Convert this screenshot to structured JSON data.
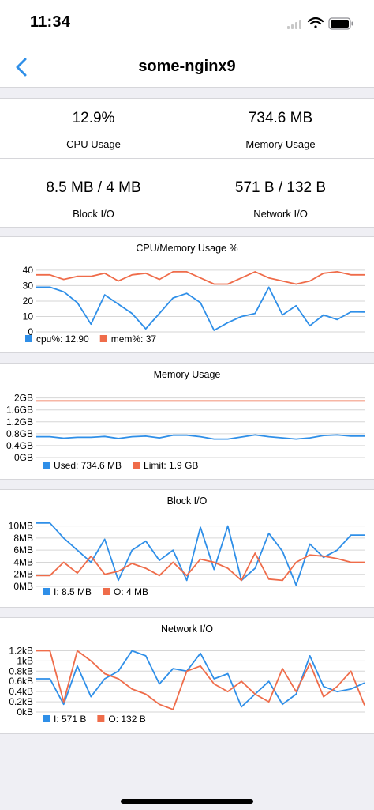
{
  "status_bar": {
    "time": "11:34"
  },
  "nav": {
    "title": "some-nginx9"
  },
  "stats": [
    {
      "value": "12.9%",
      "label": "CPU Usage"
    },
    {
      "value": "734.6 MB",
      "label": "Memory Usage"
    },
    {
      "value": "8.5 MB / 4 MB",
      "label": "Block I/O"
    },
    {
      "value": "571 B / 132 B",
      "label": "Network I/O"
    }
  ],
  "colors": {
    "blue": "#2f8fe8",
    "orange": "#ef6c4a",
    "grid": "#d6d6d6"
  },
  "chart_data": [
    {
      "type": "line",
      "title": "CPU/Memory Usage %",
      "ylim": [
        0,
        42
      ],
      "y_ticks": [
        "0",
        "10",
        "20",
        "30",
        "40"
      ],
      "x": [
        1,
        2,
        3,
        4,
        5,
        6,
        7,
        8,
        9,
        10,
        11,
        12,
        13,
        14,
        15,
        16,
        17,
        18,
        19,
        20,
        21,
        22,
        23,
        24,
        25
      ],
      "series": [
        {
          "name": "cpu%: 12.90",
          "color": "#2f8fe8",
          "values": [
            29,
            29,
            26,
            19,
            5,
            24,
            18,
            12,
            2,
            12,
            22,
            25,
            19,
            1,
            6,
            10,
            12,
            29,
            11,
            17,
            4,
            11,
            8,
            13,
            12.9
          ]
        },
        {
          "name": "mem%: 37",
          "color": "#ef6c4a",
          "values": [
            37,
            37,
            34,
            36,
            36,
            38,
            33,
            37,
            38,
            34,
            39,
            39,
            35,
            31,
            31,
            35,
            39,
            35,
            33,
            31,
            33,
            38,
            39,
            37,
            37
          ]
        }
      ]
    },
    {
      "type": "line",
      "title": "Memory Usage",
      "ylim": [
        0,
        2.15
      ],
      "y_ticks": [
        "0GB",
        "0.4GB",
        "0.8GB",
        "1.2GB",
        "1.6GB",
        "2GB"
      ],
      "x": [
        1,
        2,
        3,
        4,
        5,
        6,
        7,
        8,
        9,
        10,
        11,
        12,
        13,
        14,
        15,
        16,
        17,
        18,
        19,
        20,
        21,
        22,
        23,
        24,
        25
      ],
      "series": [
        {
          "name": "Used: 734.6 MB",
          "color": "#2f8fe8",
          "values": [
            0.7,
            0.7,
            0.65,
            0.68,
            0.68,
            0.71,
            0.64,
            0.7,
            0.72,
            0.66,
            0.75,
            0.75,
            0.7,
            0.62,
            0.62,
            0.69,
            0.76,
            0.7,
            0.66,
            0.62,
            0.66,
            0.74,
            0.76,
            0.72,
            0.72
          ]
        },
        {
          "name": "Limit: 1.9 GB",
          "color": "#ef6c4a",
          "values": [
            1.9,
            1.9,
            1.9,
            1.9,
            1.9,
            1.9,
            1.9,
            1.9,
            1.9,
            1.9,
            1.9,
            1.9,
            1.9,
            1.9,
            1.9,
            1.9,
            1.9,
            1.9,
            1.9,
            1.9,
            1.9,
            1.9,
            1.9,
            1.9,
            1.9
          ]
        }
      ]
    },
    {
      "type": "line",
      "title": "Block I/O",
      "ylim": [
        0,
        11
      ],
      "y_ticks": [
        "0MB",
        "2MB",
        "4MB",
        "6MB",
        "8MB",
        "10MB"
      ],
      "x": [
        1,
        2,
        3,
        4,
        5,
        6,
        7,
        8,
        9,
        10,
        11,
        12,
        13,
        14,
        15,
        16,
        17,
        18,
        19,
        20,
        21,
        22,
        23,
        24,
        25
      ],
      "series": [
        {
          "name": "I: 8.5 MB",
          "color": "#2f8fe8",
          "values": [
            10.5,
            10.5,
            8,
            6,
            4,
            7.8,
            1,
            6,
            7.5,
            4.3,
            6,
            1,
            9.8,
            2.8,
            10,
            1,
            3,
            8.8,
            5.8,
            0.2,
            7,
            4.8,
            6,
            8.5,
            8.5
          ]
        },
        {
          "name": "O: 4 MB",
          "color": "#ef6c4a",
          "values": [
            1.8,
            1.8,
            4,
            2.2,
            5,
            2,
            2.5,
            3.8,
            3,
            1.8,
            4,
            1.8,
            4.5,
            4,
            3,
            1,
            5.5,
            1.2,
            1,
            4,
            5.2,
            5,
            4.6,
            4,
            4
          ]
        }
      ]
    },
    {
      "type": "line",
      "title": "Network I/O",
      "ylim": [
        0,
        1.3
      ],
      "y_ticks": [
        "0kB",
        "0.2kB",
        "0.4kB",
        "0.6kB",
        "0.8kB",
        "1kB",
        "1.2kB"
      ],
      "x": [
        1,
        2,
        3,
        4,
        5,
        6,
        7,
        8,
        9,
        10,
        11,
        12,
        13,
        14,
        15,
        16,
        17,
        18,
        19,
        20,
        21,
        22,
        23,
        24,
        25
      ],
      "series": [
        {
          "name": "I: 571 B",
          "color": "#2f8fe8",
          "values": [
            0.65,
            0.65,
            0.15,
            0.9,
            0.3,
            0.65,
            0.8,
            1.2,
            1.1,
            0.55,
            0.85,
            0.8,
            1.15,
            0.65,
            0.75,
            0.1,
            0.35,
            0.6,
            0.15,
            0.35,
            1.1,
            0.5,
            0.4,
            0.45,
            0.57
          ]
        },
        {
          "name": "O: 132 B",
          "color": "#ef6c4a",
          "values": [
            1.2,
            1.2,
            0.2,
            1.2,
            1,
            0.75,
            0.65,
            0.45,
            0.35,
            0.15,
            0.05,
            0.8,
            0.9,
            0.55,
            0.4,
            0.6,
            0.35,
            0.2,
            0.85,
            0.4,
            0.95,
            0.3,
            0.5,
            0.8,
            0.13
          ]
        }
      ]
    }
  ]
}
